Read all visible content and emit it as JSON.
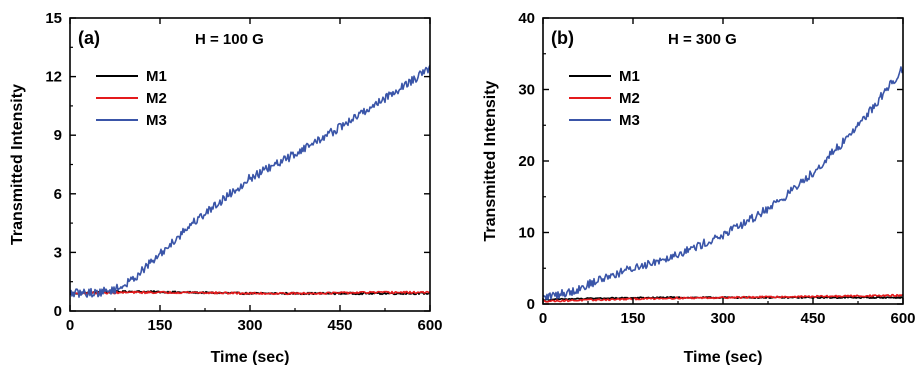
{
  "chart_data": [
    {
      "type": "line",
      "panel_label": "(a)",
      "annotation": "H = 100 G",
      "xlabel": "Time (sec)",
      "ylabel": "Transmitted Intensity",
      "xlim": [
        0,
        600
      ],
      "ylim": [
        0,
        15
      ],
      "xticks": [
        0,
        150,
        300,
        450,
        600
      ],
      "yticks": [
        0,
        3,
        6,
        9,
        12,
        15
      ],
      "legend_position": "upper-left",
      "grid": false,
      "series": [
        {
          "name": "M1",
          "color": "#000000",
          "noise": 0.05,
          "x": [
            0,
            100,
            200,
            300,
            400,
            500,
            600
          ],
          "values": [
            0.9,
            1.0,
            0.95,
            0.9,
            0.9,
            0.9,
            0.9
          ]
        },
        {
          "name": "M2",
          "color": "#e41a1c",
          "noise": 0.05,
          "x": [
            0,
            100,
            200,
            300,
            400,
            500,
            600
          ],
          "values": [
            0.9,
            0.95,
            0.95,
            0.9,
            0.9,
            0.95,
            0.95
          ]
        },
        {
          "name": "M3",
          "color": "#3a55a8",
          "noise": 0.22,
          "x": [
            0,
            50,
            80,
            100,
            150,
            200,
            250,
            300,
            350,
            400,
            450,
            500,
            550,
            600
          ],
          "values": [
            0.9,
            0.95,
            1.15,
            1.5,
            2.9,
            4.4,
            5.6,
            6.8,
            7.6,
            8.5,
            9.4,
            10.4,
            11.4,
            12.4
          ]
        }
      ]
    },
    {
      "type": "line",
      "panel_label": "(b)",
      "annotation": "H = 300 G",
      "xlabel": "Time (sec)",
      "ylabel": "Transmitted Intensity",
      "xlim": [
        0,
        600
      ],
      "ylim": [
        0,
        40
      ],
      "xticks": [
        0,
        150,
        300,
        450,
        600
      ],
      "yticks": [
        0,
        10,
        20,
        30,
        40
      ],
      "legend_position": "upper-left",
      "grid": false,
      "series": [
        {
          "name": "M1",
          "color": "#000000",
          "noise": 0.1,
          "x": [
            0,
            100,
            200,
            300,
            400,
            500,
            600
          ],
          "values": [
            0.6,
            0.8,
            0.9,
            0.9,
            0.9,
            0.9,
            0.9
          ]
        },
        {
          "name": "M2",
          "color": "#e41a1c",
          "noise": 0.12,
          "x": [
            0,
            100,
            200,
            300,
            400,
            500,
            600
          ],
          "values": [
            0.4,
            0.6,
            0.8,
            0.9,
            1.0,
            1.1,
            1.2
          ]
        },
        {
          "name": "M3",
          "color": "#3a55a8",
          "noise": 0.6,
          "x": [
            0,
            50,
            100,
            150,
            200,
            250,
            300,
            350,
            400,
            450,
            500,
            550,
            600
          ],
          "values": [
            0.9,
            1.8,
            3.6,
            5.0,
            6.3,
            7.8,
            9.6,
            12.0,
            14.8,
            18.4,
            22.6,
            27.5,
            33.0
          ]
        }
      ]
    }
  ]
}
